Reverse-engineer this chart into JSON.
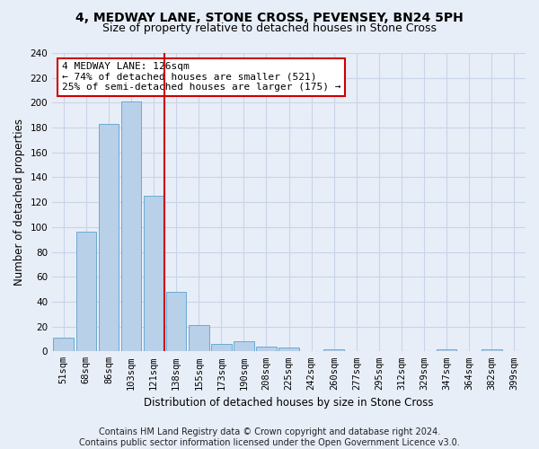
{
  "title_line1": "4, MEDWAY LANE, STONE CROSS, PEVENSEY, BN24 5PH",
  "title_line2": "Size of property relative to detached houses in Stone Cross",
  "xlabel": "Distribution of detached houses by size in Stone Cross",
  "ylabel": "Number of detached properties",
  "footer_line1": "Contains HM Land Registry data © Crown copyright and database right 2024.",
  "footer_line2": "Contains public sector information licensed under the Open Government Licence v3.0.",
  "bar_labels": [
    "51sqm",
    "68sqm",
    "86sqm",
    "103sqm",
    "121sqm",
    "138sqm",
    "155sqm",
    "173sqm",
    "190sqm",
    "208sqm",
    "225sqm",
    "242sqm",
    "260sqm",
    "277sqm",
    "295sqm",
    "312sqm",
    "329sqm",
    "347sqm",
    "364sqm",
    "382sqm",
    "399sqm"
  ],
  "bar_values": [
    11,
    96,
    183,
    201,
    125,
    48,
    21,
    6,
    8,
    4,
    3,
    0,
    2,
    0,
    0,
    0,
    0,
    2,
    0,
    2,
    0
  ],
  "bar_color": "#b8d0e8",
  "bar_edgecolor": "#6aaad4",
  "grid_color": "#c8d4e8",
  "annotation_text": "4 MEDWAY LANE: 126sqm\n← 74% of detached houses are smaller (521)\n25% of semi-detached houses are larger (175) →",
  "annotation_box_color": "#ffffff",
  "annotation_box_edgecolor": "#cc0000",
  "vline_color": "#cc0000",
  "vline_x_index": 4.47,
  "ylim": [
    0,
    240
  ],
  "yticks": [
    0,
    20,
    40,
    60,
    80,
    100,
    120,
    140,
    160,
    180,
    200,
    220,
    240
  ],
  "background_color": "#e8eef8",
  "title_fontsize": 10,
  "subtitle_fontsize": 9,
  "axis_label_fontsize": 8.5,
  "tick_fontsize": 7.5,
  "footer_fontsize": 7,
  "annot_fontsize": 8
}
